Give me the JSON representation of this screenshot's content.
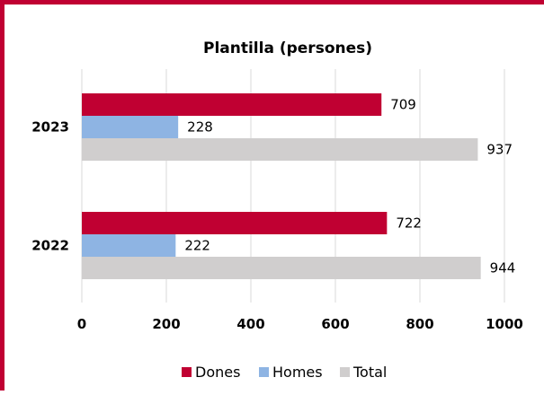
{
  "chart_data": {
    "type": "bar",
    "orientation": "horizontal",
    "title": "Plantilla (persones)",
    "categories": [
      "2023",
      "2022"
    ],
    "series": [
      {
        "name": "Dones",
        "values": [
          709,
          722
        ],
        "color": "#c00032"
      },
      {
        "name": "Homes",
        "values": [
          228,
          222
        ],
        "color": "#8eb4e3"
      },
      {
        "name": "Total",
        "values": [
          937,
          944
        ],
        "color": "#d0cece"
      }
    ],
    "xlim": [
      0,
      1000
    ],
    "xticks": [
      "0",
      "200",
      "400",
      "600",
      "800",
      "1000"
    ],
    "grid": true,
    "legend_position": "bottom"
  },
  "colors": {
    "frame": "#c00032"
  }
}
